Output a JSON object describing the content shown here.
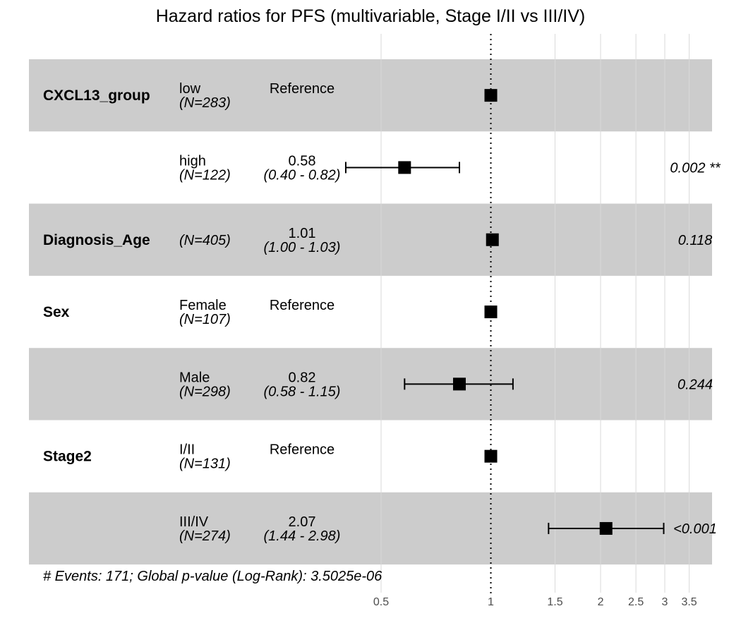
{
  "chart_data": {
    "type": "forest",
    "title": "Hazard ratios for PFS (multivariable, Stage I/II vs III/IV)",
    "x_scale": "log",
    "xlim": [
      0.4,
      4.2
    ],
    "reference_line": 1,
    "x_ticks": [
      {
        "value": 0.5,
        "label": "0.5"
      },
      {
        "value": 1,
        "label": "1"
      },
      {
        "value": 1.5,
        "label": "1.5"
      },
      {
        "value": 2,
        "label": "2"
      },
      {
        "value": 2.5,
        "label": "2.5"
      },
      {
        "value": 3,
        "label": "3"
      },
      {
        "value": 3.5,
        "label": "3.5"
      }
    ],
    "rows": [
      {
        "variable": "CXCL13_group",
        "level": "low",
        "n": "(N=283)",
        "reference": true,
        "estimate_label": "Reference",
        "ci_label": "",
        "hr": 1,
        "lower": null,
        "upper": null,
        "p_label": "",
        "shaded": true
      },
      {
        "variable": "",
        "level": "high",
        "n": "(N=122)",
        "reference": false,
        "estimate_label": "0.58",
        "ci_label": "(0.40 - 0.82)",
        "hr": 0.58,
        "lower": 0.4,
        "upper": 0.82,
        "p_label": "0.002 **",
        "shaded": false
      },
      {
        "variable": "Diagnosis_Age",
        "level": "",
        "n": "(N=405)",
        "reference": false,
        "estimate_label": "1.01",
        "ci_label": "(1.00 - 1.03)",
        "hr": 1.01,
        "lower": 1.0,
        "upper": 1.03,
        "p_label": "0.118",
        "shaded": true
      },
      {
        "variable": "Sex",
        "level": "Female",
        "n": "(N=107)",
        "reference": true,
        "estimate_label": "Reference",
        "ci_label": "",
        "hr": 1,
        "lower": null,
        "upper": null,
        "p_label": "",
        "shaded": false
      },
      {
        "variable": "",
        "level": "Male",
        "n": "(N=298)",
        "reference": false,
        "estimate_label": "0.82",
        "ci_label": "(0.58 - 1.15)",
        "hr": 0.82,
        "lower": 0.58,
        "upper": 1.15,
        "p_label": "0.244",
        "shaded": true
      },
      {
        "variable": "Stage2",
        "level": "I/II",
        "n": "(N=131)",
        "reference": true,
        "estimate_label": "Reference",
        "ci_label": "",
        "hr": 1,
        "lower": null,
        "upper": null,
        "p_label": "",
        "shaded": false
      },
      {
        "variable": "",
        "level": "III/IV",
        "n": "(N=274)",
        "reference": false,
        "estimate_label": "2.07",
        "ci_label": "(1.44 - 2.98)",
        "hr": 2.07,
        "lower": 1.44,
        "upper": 2.98,
        "p_label": "<0.001",
        "shaded": true
      }
    ],
    "footer": "# Events: 171; Global p-value (Log-Rank): 3.5025e-06",
    "colors": {
      "row_shade": "#cccccc",
      "marker": "#000000",
      "grid": "#d9d9d9",
      "reference_line": "#000000"
    }
  }
}
